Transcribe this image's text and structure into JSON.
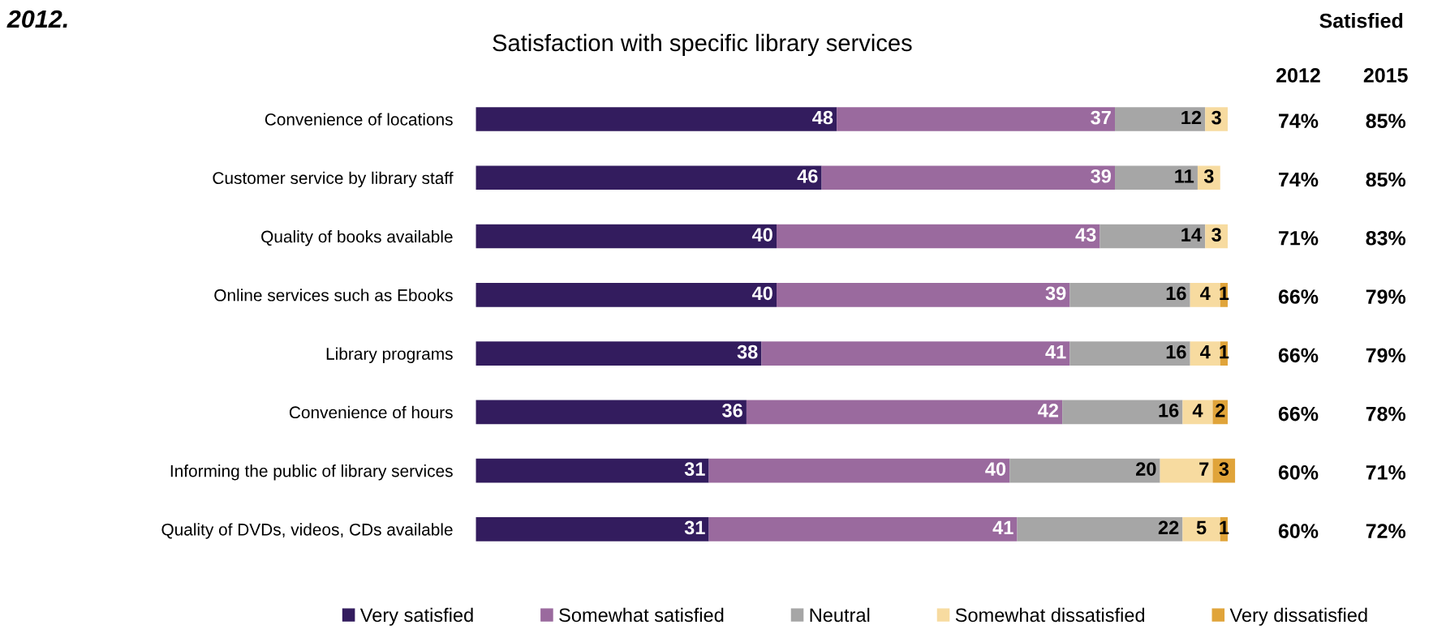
{
  "chart_data": {
    "type": "bar",
    "orientation": "horizontal",
    "stacked": true,
    "title": "Satisfaction with specific library services",
    "categories": [
      "Convenience of locations",
      "Customer service by library staff",
      "Quality of books available",
      "Online services such as Ebooks",
      "Library programs",
      "Convenience of hours",
      "Informing the public of library services",
      "Quality of DVDs, videos, CDs available"
    ],
    "series": [
      {
        "name": "Very satisfied",
        "color": "#331c5e",
        "values": [
          48,
          46,
          40,
          40,
          38,
          36,
          31,
          31
        ]
      },
      {
        "name": "Somewhat satisfied",
        "color": "#9a6a9e",
        "values": [
          37,
          39,
          43,
          39,
          41,
          42,
          40,
          41
        ]
      },
      {
        "name": "Neutral",
        "color": "#a6a6a6",
        "values": [
          12,
          11,
          14,
          16,
          16,
          16,
          20,
          22
        ]
      },
      {
        "name": "Somewhat dissatisfied",
        "color": "#f7dba0",
        "values": [
          3,
          3,
          3,
          4,
          4,
          4,
          7,
          5
        ]
      },
      {
        "name": "Very dissatisfied",
        "color": "#e0a43a",
        "values": [
          null,
          null,
          null,
          1,
          1,
          2,
          3,
          1
        ]
      }
    ],
    "data_labels": true,
    "legend": "bottom",
    "tick_labels": "y",
    "grid": false,
    "annotations": [
      "2012.",
      "Satisfied",
      "2012",
      "2015",
      "74%",
      "85%",
      "74%",
      "85%",
      "71%",
      "83%",
      "66%",
      "79%",
      "66%",
      "79%",
      "66%",
      "78%",
      "60%",
      "71%",
      "60%",
      "72%"
    ]
  }
}
